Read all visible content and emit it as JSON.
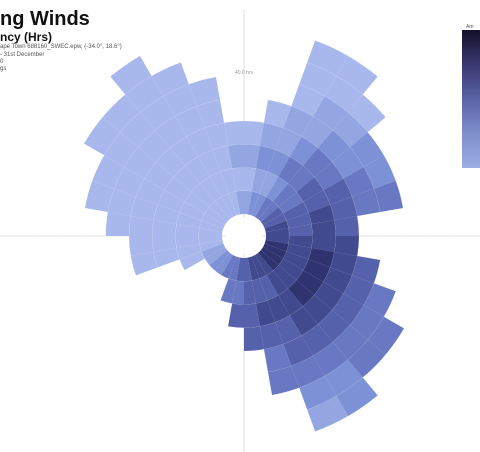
{
  "header": {
    "title": "ng Winds",
    "subtitle": "ncy (Hrs)",
    "line1": "ape Town 688160_SWEC.epw, (-34.0°, 18.6°)",
    "line2": "- 31st December",
    "line3": "0",
    "line4": "gs"
  },
  "legend": {
    "label": "Am",
    "colors": [
      "#14102a",
      "#3a3870",
      "#5a63a6",
      "#7f8fcc",
      "#9aaee2"
    ]
  },
  "colors": {
    "scale": [
      "#a9b8ec",
      "#93a6e2",
      "#7d91d6",
      "#6878c2",
      "#5561aa",
      "#414a8e",
      "#2f336f",
      "#221f4f"
    ],
    "grid": "#c8c8c8"
  },
  "chart_data": {
    "type": "radial-histogram",
    "title": "ng Winds",
    "subtitle": "ncy (Hrs)",
    "angle_unit": "degrees",
    "sectors": 36,
    "sector_width": 10,
    "rings": 8,
    "outer_ring_levels": [
      3,
      4,
      7,
      7,
      6,
      5,
      5,
      5,
      3,
      3,
      4,
      5,
      6,
      6,
      7,
      7,
      5,
      3,
      2,
      1,
      0,
      0,
      0,
      0,
      1,
      3,
      3,
      4,
      5,
      5,
      6,
      6,
      7,
      6,
      5,
      3
    ],
    "axis_tick_labels": {
      "north": "40.0 hrs",
      "south": "",
      "east": "",
      "west": ""
    },
    "grid": true
  }
}
